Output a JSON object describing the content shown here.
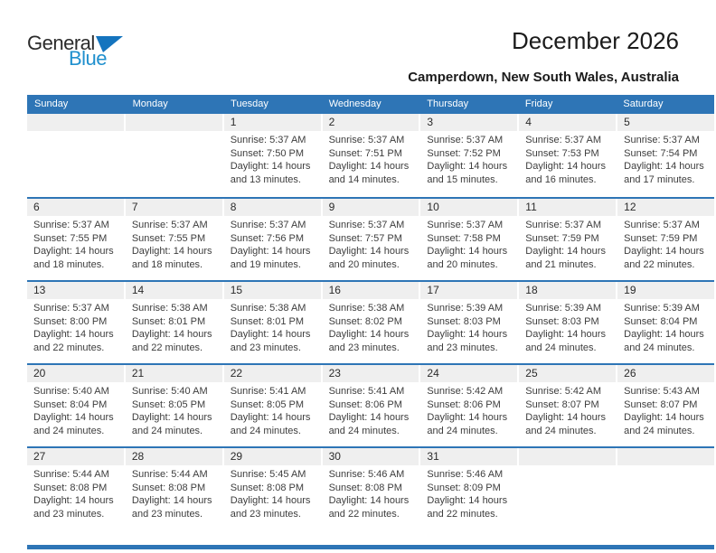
{
  "logo": {
    "general": "General",
    "blue": "Blue"
  },
  "header": {
    "title": "December 2026",
    "subtitle": "Camperdown, New South Wales, Australia"
  },
  "colors": {
    "header_blue": "#2E75B6",
    "separator_blue": "#2E75B6",
    "strip_gray": "#EFEFEF",
    "logo_blue": "#2090CE",
    "logo_triangle_blue": "#1474BE"
  },
  "weekdays": [
    "Sunday",
    "Monday",
    "Tuesday",
    "Wednesday",
    "Thursday",
    "Friday",
    "Saturday"
  ],
  "weeks": [
    [
      {
        "day": ""
      },
      {
        "day": ""
      },
      {
        "day": "1",
        "sunrise": "Sunrise: 5:37 AM",
        "sunset": "Sunset: 7:50 PM",
        "daylight1": "Daylight: 14 hours",
        "daylight2": "and 13 minutes."
      },
      {
        "day": "2",
        "sunrise": "Sunrise: 5:37 AM",
        "sunset": "Sunset: 7:51 PM",
        "daylight1": "Daylight: 14 hours",
        "daylight2": "and 14 minutes."
      },
      {
        "day": "3",
        "sunrise": "Sunrise: 5:37 AM",
        "sunset": "Sunset: 7:52 PM",
        "daylight1": "Daylight: 14 hours",
        "daylight2": "and 15 minutes."
      },
      {
        "day": "4",
        "sunrise": "Sunrise: 5:37 AM",
        "sunset": "Sunset: 7:53 PM",
        "daylight1": "Daylight: 14 hours",
        "daylight2": "and 16 minutes."
      },
      {
        "day": "5",
        "sunrise": "Sunrise: 5:37 AM",
        "sunset": "Sunset: 7:54 PM",
        "daylight1": "Daylight: 14 hours",
        "daylight2": "and 17 minutes."
      }
    ],
    [
      {
        "day": "6",
        "sunrise": "Sunrise: 5:37 AM",
        "sunset": "Sunset: 7:55 PM",
        "daylight1": "Daylight: 14 hours",
        "daylight2": "and 18 minutes."
      },
      {
        "day": "7",
        "sunrise": "Sunrise: 5:37 AM",
        "sunset": "Sunset: 7:55 PM",
        "daylight1": "Daylight: 14 hours",
        "daylight2": "and 18 minutes."
      },
      {
        "day": "8",
        "sunrise": "Sunrise: 5:37 AM",
        "sunset": "Sunset: 7:56 PM",
        "daylight1": "Daylight: 14 hours",
        "daylight2": "and 19 minutes."
      },
      {
        "day": "9",
        "sunrise": "Sunrise: 5:37 AM",
        "sunset": "Sunset: 7:57 PM",
        "daylight1": "Daylight: 14 hours",
        "daylight2": "and 20 minutes."
      },
      {
        "day": "10",
        "sunrise": "Sunrise: 5:37 AM",
        "sunset": "Sunset: 7:58 PM",
        "daylight1": "Daylight: 14 hours",
        "daylight2": "and 20 minutes."
      },
      {
        "day": "11",
        "sunrise": "Sunrise: 5:37 AM",
        "sunset": "Sunset: 7:59 PM",
        "daylight1": "Daylight: 14 hours",
        "daylight2": "and 21 minutes."
      },
      {
        "day": "12",
        "sunrise": "Sunrise: 5:37 AM",
        "sunset": "Sunset: 7:59 PM",
        "daylight1": "Daylight: 14 hours",
        "daylight2": "and 22 minutes."
      }
    ],
    [
      {
        "day": "13",
        "sunrise": "Sunrise: 5:37 AM",
        "sunset": "Sunset: 8:00 PM",
        "daylight1": "Daylight: 14 hours",
        "daylight2": "and 22 minutes."
      },
      {
        "day": "14",
        "sunrise": "Sunrise: 5:38 AM",
        "sunset": "Sunset: 8:01 PM",
        "daylight1": "Daylight: 14 hours",
        "daylight2": "and 22 minutes."
      },
      {
        "day": "15",
        "sunrise": "Sunrise: 5:38 AM",
        "sunset": "Sunset: 8:01 PM",
        "daylight1": "Daylight: 14 hours",
        "daylight2": "and 23 minutes."
      },
      {
        "day": "16",
        "sunrise": "Sunrise: 5:38 AM",
        "sunset": "Sunset: 8:02 PM",
        "daylight1": "Daylight: 14 hours",
        "daylight2": "and 23 minutes."
      },
      {
        "day": "17",
        "sunrise": "Sunrise: 5:39 AM",
        "sunset": "Sunset: 8:03 PM",
        "daylight1": "Daylight: 14 hours",
        "daylight2": "and 23 minutes."
      },
      {
        "day": "18",
        "sunrise": "Sunrise: 5:39 AM",
        "sunset": "Sunset: 8:03 PM",
        "daylight1": "Daylight: 14 hours",
        "daylight2": "and 24 minutes."
      },
      {
        "day": "19",
        "sunrise": "Sunrise: 5:39 AM",
        "sunset": "Sunset: 8:04 PM",
        "daylight1": "Daylight: 14 hours",
        "daylight2": "and 24 minutes."
      }
    ],
    [
      {
        "day": "20",
        "sunrise": "Sunrise: 5:40 AM",
        "sunset": "Sunset: 8:04 PM",
        "daylight1": "Daylight: 14 hours",
        "daylight2": "and 24 minutes."
      },
      {
        "day": "21",
        "sunrise": "Sunrise: 5:40 AM",
        "sunset": "Sunset: 8:05 PM",
        "daylight1": "Daylight: 14 hours",
        "daylight2": "and 24 minutes."
      },
      {
        "day": "22",
        "sunrise": "Sunrise: 5:41 AM",
        "sunset": "Sunset: 8:05 PM",
        "daylight1": "Daylight: 14 hours",
        "daylight2": "and 24 minutes."
      },
      {
        "day": "23",
        "sunrise": "Sunrise: 5:41 AM",
        "sunset": "Sunset: 8:06 PM",
        "daylight1": "Daylight: 14 hours",
        "daylight2": "and 24 minutes."
      },
      {
        "day": "24",
        "sunrise": "Sunrise: 5:42 AM",
        "sunset": "Sunset: 8:06 PM",
        "daylight1": "Daylight: 14 hours",
        "daylight2": "and 24 minutes."
      },
      {
        "day": "25",
        "sunrise": "Sunrise: 5:42 AM",
        "sunset": "Sunset: 8:07 PM",
        "daylight1": "Daylight: 14 hours",
        "daylight2": "and 24 minutes."
      },
      {
        "day": "26",
        "sunrise": "Sunrise: 5:43 AM",
        "sunset": "Sunset: 8:07 PM",
        "daylight1": "Daylight: 14 hours",
        "daylight2": "and 24 minutes."
      }
    ],
    [
      {
        "day": "27",
        "sunrise": "Sunrise: 5:44 AM",
        "sunset": "Sunset: 8:08 PM",
        "daylight1": "Daylight: 14 hours",
        "daylight2": "and 23 minutes."
      },
      {
        "day": "28",
        "sunrise": "Sunrise: 5:44 AM",
        "sunset": "Sunset: 8:08 PM",
        "daylight1": "Daylight: 14 hours",
        "daylight2": "and 23 minutes."
      },
      {
        "day": "29",
        "sunrise": "Sunrise: 5:45 AM",
        "sunset": "Sunset: 8:08 PM",
        "daylight1": "Daylight: 14 hours",
        "daylight2": "and 23 minutes."
      },
      {
        "day": "30",
        "sunrise": "Sunrise: 5:46 AM",
        "sunset": "Sunset: 8:08 PM",
        "daylight1": "Daylight: 14 hours",
        "daylight2": "and 22 minutes."
      },
      {
        "day": "31",
        "sunrise": "Sunrise: 5:46 AM",
        "sunset": "Sunset: 8:09 PM",
        "daylight1": "Daylight: 14 hours",
        "daylight2": "and 22 minutes."
      },
      {
        "day": ""
      },
      {
        "day": ""
      }
    ]
  ]
}
